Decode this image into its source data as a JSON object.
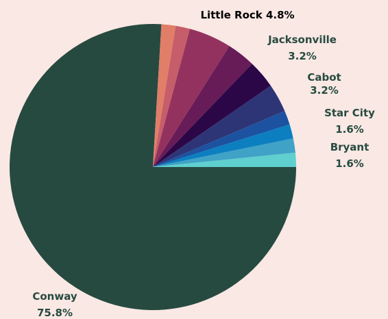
{
  "chart_data": {
    "type": "pie",
    "title": "",
    "slices": [
      {
        "name": "Conway",
        "value": 75.8,
        "color": "#274a40",
        "label": [
          "Conway",
          "75.8%"
        ]
      },
      {
        "name": "Slice 2",
        "value": 1.6,
        "color": "#e07e68",
        "label": null
      },
      {
        "name": "Slice 3",
        "value": 1.6,
        "color": "#c55e6a",
        "label": null
      },
      {
        "name": "Little Rock",
        "value": 4.8,
        "color": "#94325f",
        "label": [
          "Little Rock 4.8%"
        ]
      },
      {
        "name": "Slice 5",
        "value": 3.2,
        "color": "#671c58",
        "label": null
      },
      {
        "name": "Jacksonville",
        "value": 3.2,
        "color": "#2c0747",
        "label": [
          "Jacksonville",
          "3.2%"
        ]
      },
      {
        "name": "Cabot",
        "value": 3.2,
        "color": "#2d3576",
        "label": [
          "Cabot",
          "3.2%"
        ]
      },
      {
        "name": "Slice 8",
        "value": 1.6,
        "color": "#1c52a0",
        "label": null
      },
      {
        "name": "Star City",
        "value": 1.6,
        "color": "#0b7fc0",
        "label": [
          "Star City",
          "1.6%"
        ]
      },
      {
        "name": "Slice 10",
        "value": 1.6,
        "color": "#40a2c6",
        "label": null
      },
      {
        "name": "Bryant",
        "value": 1.6,
        "color": "#5fcfcf",
        "label": [
          "Bryant",
          "1.6%"
        ]
      }
    ],
    "label_color": "#274a40",
    "highlight_label_color": "#000000"
  }
}
